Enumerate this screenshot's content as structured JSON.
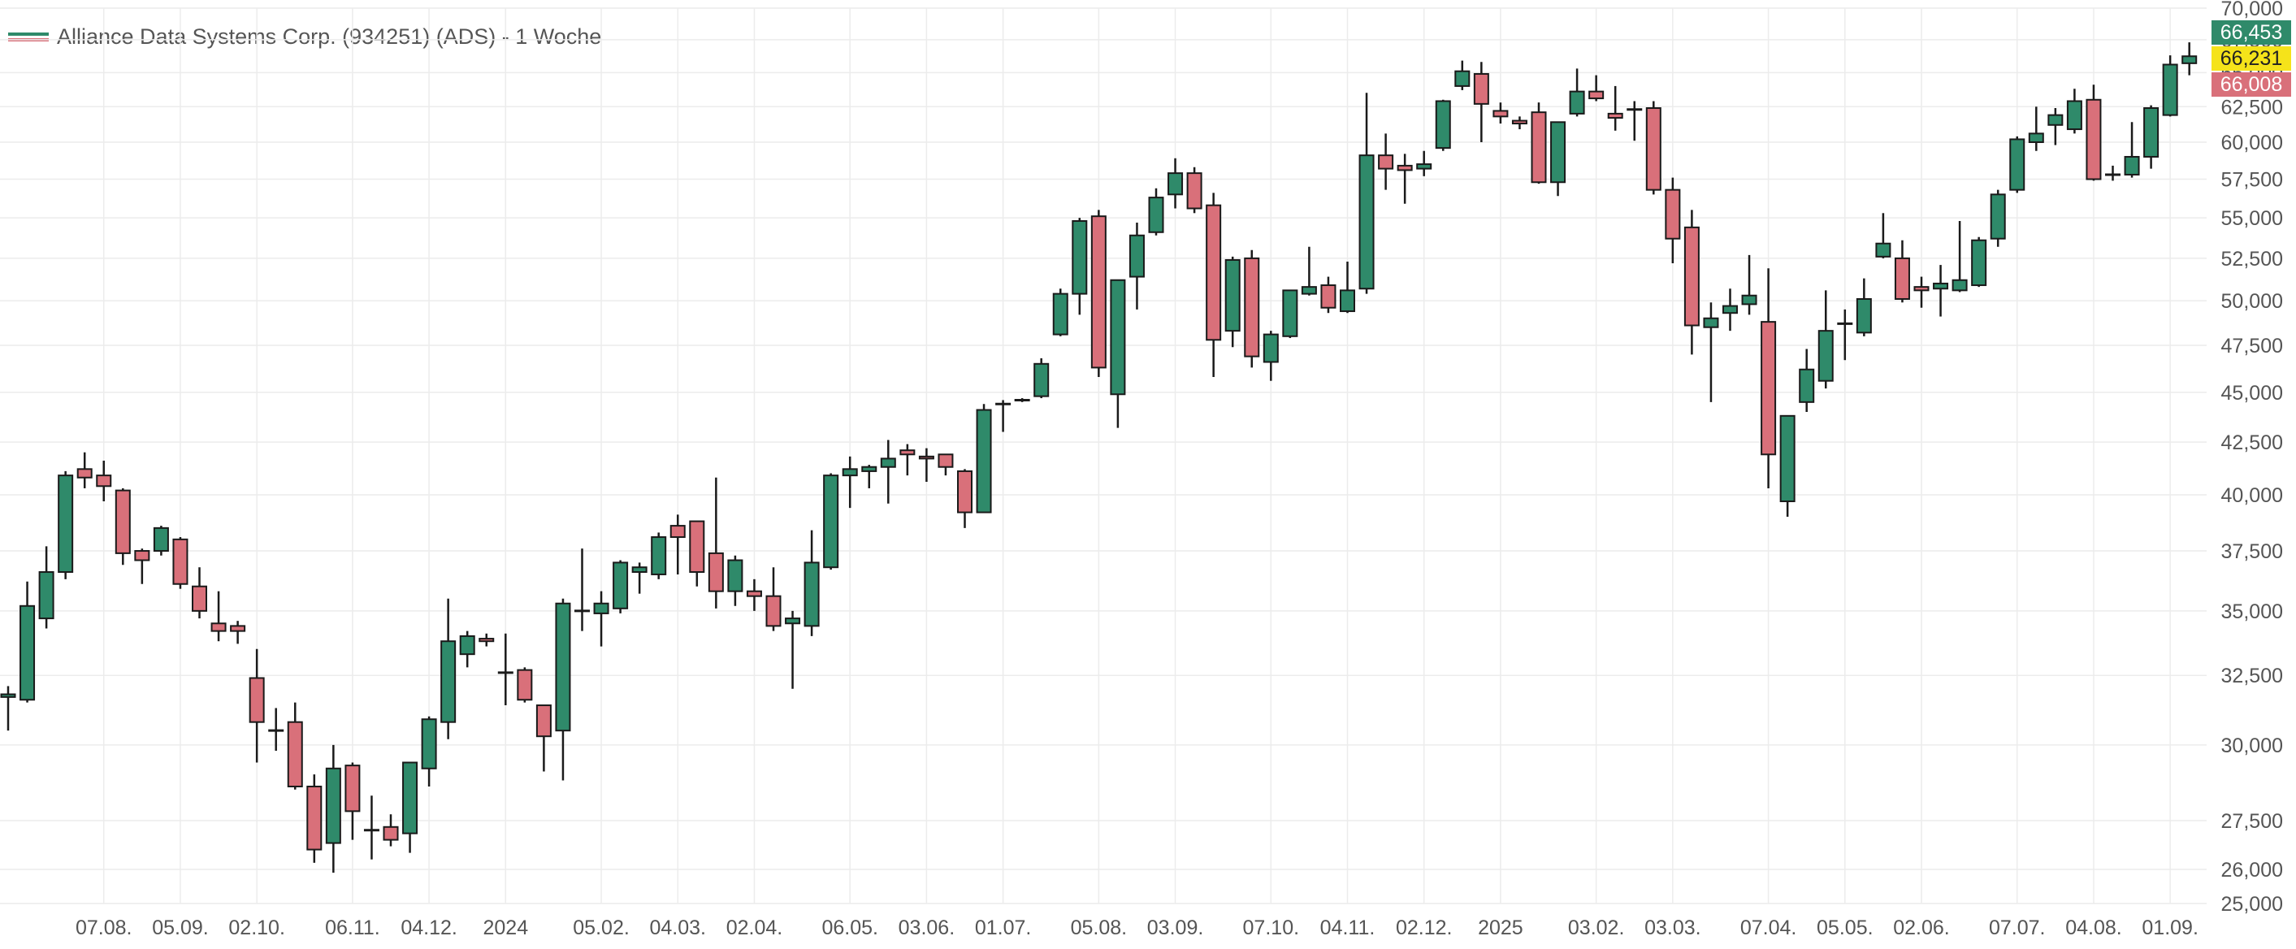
{
  "chart_data": {
    "type": "candlestick",
    "title": "Alliance Data Systems Corp. (934251) (ADS) - 1 Woche",
    "interval": "1 Woche",
    "y_scale": "log",
    "ylim": [
      25000,
      70000
    ],
    "y_ticks": [
      25000,
      26000,
      27500,
      30000,
      32500,
      35000,
      37500,
      40000,
      42500,
      45000,
      47500,
      50000,
      52500,
      55000,
      57500,
      60000,
      62500,
      65000,
      67500,
      70000
    ],
    "y_tick_labels": [
      "25,000",
      "26,000",
      "27,500",
      "30,000",
      "32,500",
      "35,000",
      "37,500",
      "40,000",
      "42,500",
      "45,000",
      "47,500",
      "50,000",
      "52,500",
      "55,000",
      "57,500",
      "60,000",
      "62,500",
      "65,000",
      "67,500",
      "70,000"
    ],
    "x_labels": [
      {
        "i": 5,
        "label": "07.08."
      },
      {
        "i": 9,
        "label": "05.09."
      },
      {
        "i": 13,
        "label": "02.10."
      },
      {
        "i": 18,
        "label": "06.11."
      },
      {
        "i": 22,
        "label": "04.12."
      },
      {
        "i": 26,
        "label": "2024"
      },
      {
        "i": 31,
        "label": "05.02."
      },
      {
        "i": 35,
        "label": "04.03."
      },
      {
        "i": 39,
        "label": "02.04."
      },
      {
        "i": 44,
        "label": "06.05."
      },
      {
        "i": 48,
        "label": "03.06."
      },
      {
        "i": 52,
        "label": "01.07."
      },
      {
        "i": 57,
        "label": "05.08."
      },
      {
        "i": 61,
        "label": "03.09."
      },
      {
        "i": 66,
        "label": "07.10."
      },
      {
        "i": 70,
        "label": "04.11."
      },
      {
        "i": 74,
        "label": "02.12."
      },
      {
        "i": 78,
        "label": "2025"
      },
      {
        "i": 83,
        "label": "03.02."
      },
      {
        "i": 87,
        "label": "03.03."
      },
      {
        "i": 92,
        "label": "07.04."
      },
      {
        "i": 96,
        "label": "05.05."
      },
      {
        "i": 100,
        "label": "02.06."
      },
      {
        "i": 105,
        "label": "07.07."
      },
      {
        "i": 109,
        "label": "04.08."
      },
      {
        "i": 113,
        "label": "01.09."
      }
    ],
    "candles": [
      [
        31700,
        32100,
        30500,
        31800
      ],
      [
        31600,
        36200,
        31500,
        35200
      ],
      [
        34700,
        37700,
        34300,
        36600
      ],
      [
        36600,
        41100,
        36300,
        40900
      ],
      [
        41200,
        42000,
        40300,
        40800
      ],
      [
        40900,
        41600,
        39700,
        40400
      ],
      [
        40200,
        40300,
        36900,
        37400
      ],
      [
        37500,
        37600,
        36100,
        37100
      ],
      [
        37500,
        38600,
        37300,
        38500
      ],
      [
        38000,
        38100,
        35900,
        36100
      ],
      [
        36000,
        36800,
        34700,
        35000
      ],
      [
        34500,
        35800,
        33800,
        34200
      ],
      [
        34400,
        34600,
        33700,
        34200
      ],
      [
        32400,
        33500,
        29400,
        30800
      ],
      [
        30500,
        31300,
        29800,
        30500
      ],
      [
        30800,
        31500,
        28500,
        28600
      ],
      [
        28600,
        29000,
        26200,
        26600
      ],
      [
        26800,
        30000,
        25900,
        29200
      ],
      [
        29300,
        29400,
        26900,
        27800
      ],
      [
        27200,
        28300,
        26300,
        27200
      ],
      [
        27300,
        27700,
        26700,
        26900
      ],
      [
        27100,
        29400,
        26500,
        29400
      ],
      [
        29200,
        31000,
        28600,
        30900
      ],
      [
        30800,
        35500,
        30200,
        33800
      ],
      [
        33300,
        34200,
        32800,
        34000
      ],
      [
        33900,
        34100,
        33600,
        33800
      ],
      [
        32600,
        34100,
        31400,
        32600
      ],
      [
        32700,
        32800,
        31500,
        31600
      ],
      [
        31400,
        31400,
        29100,
        30300
      ],
      [
        30500,
        35500,
        28800,
        35300
      ],
      [
        35000,
        37600,
        34200,
        35000
      ],
      [
        34900,
        35800,
        33600,
        35300
      ],
      [
        35100,
        37100,
        34900,
        37000
      ],
      [
        36600,
        37000,
        35700,
        36800
      ],
      [
        36500,
        38300,
        36300,
        38100
      ],
      [
        38600,
        39100,
        36500,
        38100
      ],
      [
        38800,
        38800,
        36000,
        36600
      ],
      [
        37400,
        40800,
        35100,
        35800
      ],
      [
        35800,
        37300,
        35200,
        37100
      ],
      [
        35800,
        36300,
        35000,
        35600
      ],
      [
        35600,
        36800,
        34200,
        34400
      ],
      [
        34500,
        35000,
        32000,
        34700
      ],
      [
        34400,
        38400,
        34000,
        37000
      ],
      [
        36800,
        41000,
        36700,
        40900
      ],
      [
        40900,
        41800,
        39400,
        41200
      ],
      [
        41100,
        41400,
        40300,
        41300
      ],
      [
        41300,
        42600,
        39600,
        41700
      ],
      [
        42100,
        42400,
        40900,
        41900
      ],
      [
        41800,
        42200,
        40600,
        41700
      ],
      [
        41900,
        41900,
        40900,
        41300
      ],
      [
        41100,
        41200,
        38500,
        39200
      ],
      [
        39200,
        44400,
        39200,
        44100
      ],
      [
        44300,
        44600,
        43000,
        44400
      ],
      [
        44600,
        44700,
        44500,
        44600
      ],
      [
        44800,
        46800,
        44700,
        46500
      ],
      [
        48100,
        50700,
        48000,
        50400
      ],
      [
        50400,
        55000,
        49200,
        54800
      ],
      [
        55100,
        55500,
        45800,
        46300
      ],
      [
        44900,
        51200,
        43200,
        51200
      ],
      [
        51400,
        54700,
        49500,
        53900
      ],
      [
        54100,
        56900,
        53900,
        56300
      ],
      [
        56500,
        58900,
        55600,
        57900
      ],
      [
        57900,
        58300,
        55300,
        55600
      ],
      [
        55800,
        56600,
        45800,
        47800
      ],
      [
        48300,
        52600,
        47400,
        52400
      ],
      [
        52500,
        53000,
        46300,
        46900
      ],
      [
        46600,
        48300,
        45600,
        48100
      ],
      [
        48000,
        50600,
        47900,
        50600
      ],
      [
        50400,
        53200,
        50300,
        50800
      ],
      [
        50900,
        51400,
        49300,
        49600
      ],
      [
        49400,
        52300,
        49300,
        50600
      ],
      [
        50700,
        63500,
        50400,
        59100
      ],
      [
        59100,
        60600,
        56800,
        58200
      ],
      [
        58400,
        59200,
        55900,
        58100
      ],
      [
        58200,
        59400,
        57700,
        58500
      ],
      [
        59600,
        63000,
        59400,
        62900
      ],
      [
        64000,
        65900,
        63700,
        65100
      ],
      [
        64900,
        65800,
        60000,
        62700
      ],
      [
        62200,
        62800,
        61300,
        61800
      ],
      [
        61500,
        61800,
        60900,
        61300
      ],
      [
        62100,
        62800,
        57200,
        57300
      ],
      [
        57300,
        61300,
        56400,
        61400
      ],
      [
        62000,
        65300,
        61800,
        63600
      ],
      [
        63600,
        64800,
        62900,
        63100
      ],
      [
        62000,
        64000,
        60800,
        61700
      ],
      [
        62400,
        62900,
        60100,
        62300
      ],
      [
        62400,
        62900,
        56500,
        56800
      ],
      [
        56800,
        57600,
        52200,
        53700
      ],
      [
        54400,
        55500,
        47000,
        48600
      ],
      [
        48500,
        49900,
        44500,
        49000
      ],
      [
        49300,
        50700,
        48300,
        49700
      ],
      [
        49800,
        52700,
        49200,
        50300
      ],
      [
        48800,
        51900,
        40300,
        41900
      ],
      [
        39700,
        43800,
        39000,
        43800
      ],
      [
        44500,
        47300,
        44000,
        46200
      ],
      [
        45600,
        50600,
        45200,
        48300
      ],
      [
        48600,
        49500,
        46700,
        48700
      ],
      [
        48200,
        51300,
        48000,
        50100
      ],
      [
        52600,
        55300,
        52500,
        53400
      ],
      [
        52500,
        53600,
        49900,
        50100
      ],
      [
        50800,
        51400,
        49600,
        50600
      ],
      [
        50700,
        52100,
        49100,
        51000
      ],
      [
        50600,
        54800,
        50500,
        51200
      ],
      [
        50900,
        53800,
        50800,
        53600
      ],
      [
        53700,
        56800,
        53200,
        56500
      ],
      [
        56800,
        60400,
        56600,
        60200
      ],
      [
        60000,
        62500,
        59400,
        60600
      ],
      [
        61200,
        62400,
        59800,
        61900
      ],
      [
        60900,
        63800,
        60600,
        62900
      ],
      [
        63000,
        64100,
        57400,
        57500
      ],
      [
        57700,
        58400,
        57400,
        57800
      ],
      [
        57800,
        61400,
        57600,
        59000
      ],
      [
        59000,
        62600,
        58200,
        62400
      ],
      [
        61900,
        66300,
        61800,
        65600
      ],
      [
        65700,
        67300,
        64800,
        66231
      ]
    ],
    "price_labels": [
      {
        "value": 66453,
        "text": "66,453",
        "color": "#2f8a6a",
        "text_color": "#ffffff"
      },
      {
        "value": 66231,
        "text": "66,231",
        "color": "#f5e31a",
        "text_color": "#222222"
      },
      {
        "value": 66008,
        "text": "66,008",
        "color": "#d9707a",
        "text_color": "#ffffff"
      }
    ],
    "colors": {
      "up": "#2f8a6a",
      "down": "#d9707a",
      "outline": "#1a1a1a",
      "grid": "#ececec",
      "axis_text": "#555555"
    },
    "grid": true,
    "legend": "top-left"
  }
}
